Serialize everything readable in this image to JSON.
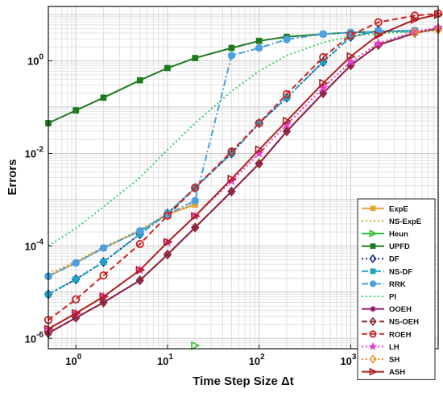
{
  "chart_data": {
    "type": "line",
    "title": "",
    "xlabel": "Time Step Size Δt",
    "ylabel": "Errors",
    "xscale": "log",
    "yscale": "log",
    "xlim": [
      0.5,
      9000
    ],
    "ylim": [
      6e-07,
      15
    ],
    "x_ticks": [
      {
        "base": "10",
        "exp": "0",
        "v": 1
      },
      {
        "base": "10",
        "exp": "1",
        "v": 10
      },
      {
        "base": "10",
        "exp": "2",
        "v": 100
      },
      {
        "base": "10",
        "exp": "3",
        "v": 1000
      }
    ],
    "y_ticks": [
      {
        "base": "10",
        "exp": "-6",
        "v": 1e-06
      },
      {
        "base": "10",
        "exp": "-4",
        "v": 0.0001
      },
      {
        "base": "10",
        "exp": "-2",
        "v": 0.01
      },
      {
        "base": "10",
        "exp": "0",
        "v": 1
      }
    ],
    "grid": true,
    "legend_position": "bottom-right",
    "series": [
      {
        "name": "ExpE",
        "color": "#e8a33c",
        "dash": "solid",
        "marker": "square",
        "x": [
          0.5,
          1,
          2,
          5,
          10,
          20
        ],
        "y": [
          2.2e-05,
          4.3e-05,
          9e-05,
          0.00021,
          0.00048,
          0.00078
        ]
      },
      {
        "name": "NS-ExpE",
        "color": "#c9a227",
        "dash": "dot",
        "marker": "none",
        "x": [
          0.5,
          1,
          2,
          5,
          10,
          20
        ],
        "y": [
          2.5e-05,
          4.6e-05,
          9.5e-05,
          0.00022,
          0.0005,
          0.0008
        ]
      },
      {
        "name": "Heun",
        "color": "#35c035",
        "dash": "solid",
        "marker": "tri-right",
        "x": [
          20
        ],
        "y": [
          7e-07
        ]
      },
      {
        "name": "UPFD",
        "color": "#1e7a1e",
        "dash": "solid",
        "marker": "square",
        "x": [
          0.5,
          1,
          2,
          5,
          10,
          20,
          50,
          100,
          200,
          500,
          1000,
          2000,
          5000
        ],
        "y": [
          0.045,
          0.085,
          0.16,
          0.38,
          0.7,
          1.15,
          1.9,
          2.7,
          3.3,
          3.8,
          4.1,
          4.3,
          4.5
        ]
      },
      {
        "name": "DF",
        "color": "#1a2f8f",
        "dash": "dot",
        "marker": "diamond",
        "x": [
          0.5,
          1,
          2,
          5,
          10,
          20,
          50,
          100,
          200,
          500,
          1000,
          2000,
          5000
        ],
        "y": [
          9e-06,
          1.9e-05,
          4.5e-05,
          0.00018,
          0.0005,
          0.0018,
          0.01,
          0.045,
          0.16,
          0.95,
          3.3,
          4.5,
          4.2
        ]
      },
      {
        "name": "NS-DF",
        "color": "#1aa3c4",
        "dash": "dashdot",
        "marker": "square",
        "x": [
          0.5,
          1,
          2,
          5,
          10,
          20,
          50,
          100,
          200,
          500,
          1000,
          2000,
          5000
        ],
        "y": [
          9e-06,
          1.9e-05,
          4.5e-05,
          0.00018,
          0.0005,
          0.0018,
          0.01,
          0.045,
          0.16,
          0.95,
          3.3,
          4.5,
          4.2
        ]
      },
      {
        "name": "RRK",
        "color": "#4aa0e0",
        "dash": "dashdot",
        "marker": "circle-filled",
        "x": [
          0.5,
          1,
          2,
          5,
          10,
          20,
          50,
          100,
          200,
          500,
          1000,
          2000,
          5000
        ],
        "y": [
          2.2e-05,
          4.3e-05,
          9e-05,
          0.00021,
          0.00048,
          0.00095,
          1.3,
          1.9,
          2.9,
          3.8,
          4.1,
          4.3,
          4.5
        ]
      },
      {
        "name": "PI",
        "color": "#3fcf6b",
        "dash": "dot",
        "marker": "none",
        "x": [
          0.5,
          1,
          2,
          5,
          10,
          20,
          50,
          100,
          200,
          500,
          1000,
          2000,
          5000,
          9000
        ],
        "y": [
          0.0001,
          0.00024,
          0.0007,
          0.003,
          0.012,
          0.045,
          0.22,
          0.6,
          1.3,
          2.5,
          3.4,
          3.9,
          4.3,
          4.5
        ]
      },
      {
        "name": "OOEH",
        "color": "#8b1a6b",
        "dash": "solid",
        "marker": "asterisk",
        "x": [
          0.5,
          1,
          2,
          5,
          10,
          20,
          50,
          100,
          200,
          500,
          1000,
          2000,
          5000,
          9000
        ],
        "y": [
          1.3e-06,
          2.8e-06,
          6e-06,
          1.8e-05,
          6.5e-05,
          0.00025,
          0.0015,
          0.006,
          0.03,
          0.2,
          0.8,
          2.2,
          4.0,
          5.0
        ]
      },
      {
        "name": "NS-OEH",
        "color": "#8b2a2a",
        "dash": "dash",
        "marker": "diamond",
        "x": [
          0.5,
          1,
          2,
          5,
          10,
          20,
          50,
          100,
          200,
          500,
          1000,
          2000,
          5000,
          9000
        ],
        "y": [
          1.3e-06,
          2.8e-06,
          6e-06,
          1.8e-05,
          6.5e-05,
          0.00025,
          0.0015,
          0.006,
          0.03,
          0.2,
          0.8,
          2.2,
          4.0,
          5.0
        ]
      },
      {
        "name": "ROEH",
        "color": "#d02020",
        "dash": "dash",
        "marker": "circle",
        "x": [
          0.5,
          1,
          2,
          5,
          10,
          20,
          50,
          100,
          200,
          500,
          1000,
          2000,
          5000,
          9000
        ],
        "y": [
          2.5e-06,
          7e-06,
          2.3e-05,
          0.00011,
          0.00045,
          0.0018,
          0.011,
          0.045,
          0.19,
          1.2,
          3.6,
          6.8,
          9.5,
          10.5
        ]
      },
      {
        "name": "LH",
        "color": "#e83ad0",
        "dash": "dot",
        "marker": "star",
        "x": [
          0.5,
          1,
          2,
          5,
          10,
          20,
          50,
          100,
          200,
          500,
          1000,
          2000,
          5000,
          9000
        ],
        "y": [
          1.6e-06,
          3.5e-06,
          8e-06,
          3e-05,
          0.00012,
          0.00044,
          0.0025,
          0.01,
          0.042,
          0.26,
          0.95,
          2.4,
          4.3,
          5.3
        ]
      },
      {
        "name": "SH",
        "color": "#f09020",
        "dash": "dot",
        "marker": "diamond",
        "x": [
          5000,
          9000
        ],
        "y": [
          4.1,
          4.7
        ]
      },
      {
        "name": "ASH",
        "color": "#b02020",
        "dash": "solid",
        "marker": "tri-right",
        "x": [
          0.5,
          1,
          2,
          5,
          10,
          20,
          50,
          100,
          200,
          500,
          1000,
          2000,
          5000,
          9000
        ],
        "y": [
          1.6e-06,
          3.5e-06,
          8e-06,
          3e-05,
          0.00012,
          0.00044,
          0.0028,
          0.012,
          0.05,
          0.33,
          1.25,
          3.6,
          7.8,
          10.0
        ]
      }
    ]
  }
}
